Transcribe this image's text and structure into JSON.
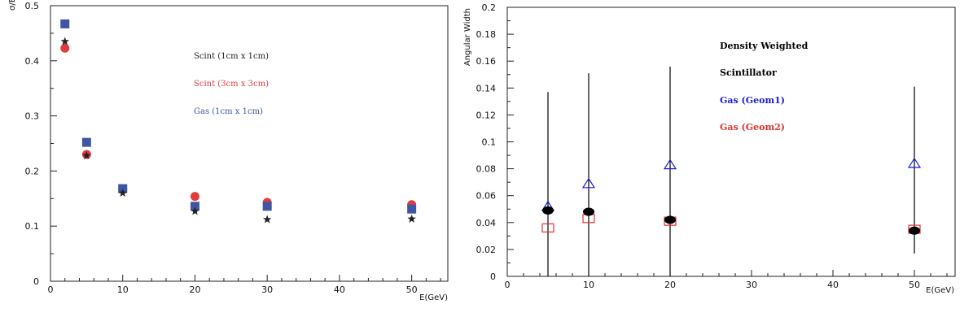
{
  "chart_data": [
    {
      "type": "scatter",
      "title": "",
      "xlabel": "E(GeV)",
      "ylabel": "σ/E",
      "xlim": [
        0,
        55
      ],
      "ylim": [
        0,
        0.5
      ],
      "xticks": [
        "0",
        "10",
        "20",
        "30",
        "40",
        "50"
      ],
      "yticks": [
        "0",
        "0.1",
        "0.2",
        "0.3",
        "0.4",
        "0.5"
      ],
      "legend_placement": "top-center",
      "series": [
        {
          "name": "Scint (1cm x 1cm)",
          "marker": "star",
          "color": "#222222",
          "x": [
            2,
            5,
            10,
            20,
            30,
            50
          ],
          "y": [
            0.435,
            0.228,
            0.16,
            0.127,
            0.112,
            0.113
          ]
        },
        {
          "name": "Scint (3cm x 3cm)",
          "marker": "circle",
          "color": "#e03c3c",
          "x": [
            2,
            5,
            10,
            20,
            30,
            50
          ],
          "y": [
            0.423,
            0.23,
            0.167,
            0.154,
            0.143,
            0.139
          ]
        },
        {
          "name": "Gas (1cm x 1cm)",
          "marker": "square",
          "color": "#3f57a3",
          "x": [
            2,
            5,
            10,
            20,
            30,
            50
          ],
          "y": [
            0.467,
            0.252,
            0.168,
            0.136,
            0.136,
            0.131
          ]
        }
      ]
    },
    {
      "type": "scatter",
      "title": "",
      "xlabel": "E(GeV)",
      "ylabel": "Angular Width",
      "xlim": [
        0,
        55
      ],
      "ylim": [
        0,
        0.2
      ],
      "xticks": [
        "0",
        "10",
        "20",
        "30",
        "40",
        "50"
      ],
      "yticks": [
        "0",
        "0.02",
        "0.04",
        "0.06",
        "0.08",
        "0.1",
        "0.12",
        "0.14",
        "0.16",
        "0.18",
        "0.2"
      ],
      "legend_placement": "top-center",
      "series": [
        {
          "name": "Density Weighted",
          "marker": "none",
          "color": "#000000",
          "x": [
            5,
            10,
            20,
            50
          ],
          "y": [
            0.049,
            0.048,
            0.042,
            0.034
          ],
          "error_low": [
            0.0,
            0.0,
            0.0,
            0.017
          ],
          "error_high": [
            0.137,
            0.151,
            0.156,
            0.141
          ]
        },
        {
          "name": "Scintillator",
          "marker": "filled-circle",
          "color": "#000000",
          "x": [
            5,
            10,
            20,
            50
          ],
          "y": [
            0.049,
            0.048,
            0.042,
            0.034
          ]
        },
        {
          "name": "Gas (Geom1)",
          "marker": "triangle",
          "color": "#1b1bd6",
          "x": [
            5,
            10,
            20,
            50
          ],
          "y": [
            0.052,
            0.069,
            0.083,
            0.084
          ]
        },
        {
          "name": "Gas (Geom2)",
          "marker": "open-square",
          "color": "#e03030",
          "x": [
            5,
            10,
            20,
            50
          ],
          "y": [
            0.036,
            0.043,
            0.041,
            0.035
          ]
        }
      ]
    }
  ]
}
